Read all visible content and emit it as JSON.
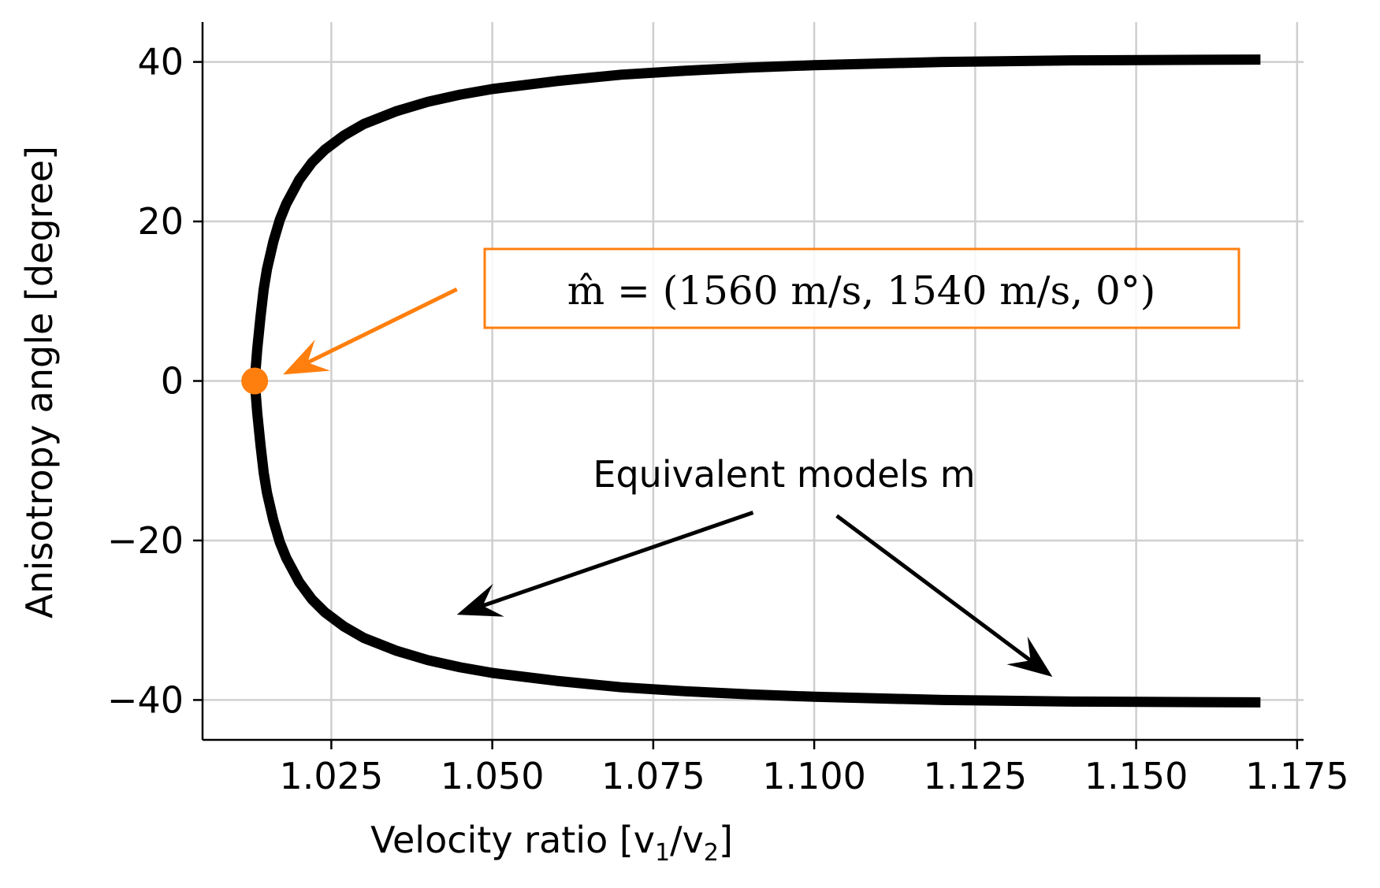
{
  "chart_data": {
    "type": "line",
    "title": "",
    "xlabel": "Velocity ratio [v1/v2]",
    "xlabel_parts": {
      "main": "Velocity ratio [v",
      "sub1": "1",
      "mid": "/v",
      "sub2": "2",
      "end": "]"
    },
    "ylabel": "Anisotropy angle [degree]",
    "xlim": [
      1.005,
      1.176
    ],
    "ylim": [
      -45,
      45
    ],
    "xticks": [
      1.025,
      1.05,
      1.075,
      1.1,
      1.125,
      1.15,
      1.175
    ],
    "xtick_labels": [
      "1.025",
      "1.050",
      "1.075",
      "1.100",
      "1.125",
      "1.150",
      "1.175"
    ],
    "yticks": [
      40,
      20,
      0,
      -20,
      -40
    ],
    "ytick_labels": [
      "40",
      "20",
      "0",
      "−20",
      "−40"
    ],
    "grid": true,
    "series": [
      {
        "name": "Equivalent models m",
        "color": "#000000",
        "points": [
          [
            1.1693,
            40.3
          ],
          [
            1.14,
            40.2
          ],
          [
            1.12,
            40.0
          ],
          [
            1.1,
            39.6
          ],
          [
            1.09,
            39.3
          ],
          [
            1.08,
            38.9
          ],
          [
            1.07,
            38.4
          ],
          [
            1.06,
            37.6
          ],
          [
            1.05,
            36.6
          ],
          [
            1.045,
            35.9
          ],
          [
            1.04,
            35.0
          ],
          [
            1.035,
            33.8
          ],
          [
            1.03,
            32.2
          ],
          [
            1.027,
            30.8
          ],
          [
            1.024,
            29.0
          ],
          [
            1.022,
            27.4
          ],
          [
            1.02,
            25.2
          ],
          [
            1.018,
            22.2
          ],
          [
            1.017,
            20.2
          ],
          [
            1.016,
            17.5
          ],
          [
            1.015,
            14.0
          ],
          [
            1.0145,
            11.5
          ],
          [
            1.014,
            8.0
          ],
          [
            1.0135,
            4.0
          ],
          [
            1.0131,
            0
          ],
          [
            1.0135,
            -4.0
          ],
          [
            1.014,
            -8.0
          ],
          [
            1.0145,
            -11.5
          ],
          [
            1.015,
            -14.0
          ],
          [
            1.016,
            -17.5
          ],
          [
            1.017,
            -20.2
          ],
          [
            1.018,
            -22.2
          ],
          [
            1.02,
            -25.2
          ],
          [
            1.022,
            -27.4
          ],
          [
            1.024,
            -29.0
          ],
          [
            1.027,
            -30.8
          ],
          [
            1.03,
            -32.2
          ],
          [
            1.035,
            -33.8
          ],
          [
            1.04,
            -35.0
          ],
          [
            1.045,
            -35.9
          ],
          [
            1.05,
            -36.6
          ],
          [
            1.06,
            -37.6
          ],
          [
            1.07,
            -38.4
          ],
          [
            1.08,
            -38.9
          ],
          [
            1.09,
            -39.3
          ],
          [
            1.1,
            -39.6
          ],
          [
            1.12,
            -40.0
          ],
          [
            1.14,
            -40.2
          ],
          [
            1.1693,
            -40.3
          ]
        ]
      }
    ],
    "highlight_point": {
      "x": 1.0131,
      "y": 0,
      "color": "#ff7f0e"
    },
    "annotations": [
      {
        "id": "m-hat",
        "text": "m̂ = (1560 m/s, 1540 m/s, 0°)",
        "box_edge_color": "#ff7f0e",
        "arrow_color": "#ff7f0e",
        "arrow_from": [
          1.0445,
          11.5
        ],
        "arrow_to": [
          1.0175,
          0.8
        ]
      },
      {
        "id": "equivalent",
        "text": "Equivalent models m",
        "arrow_color": "#000000",
        "arrows": [
          {
            "from": [
              1.0905,
              -16.5
            ],
            "to": [
              1.0445,
              -29.3
            ]
          },
          {
            "from": [
              1.1035,
              -16.9
            ],
            "to": [
              1.137,
              -37.1
            ]
          }
        ]
      }
    ]
  },
  "colors": {
    "curve": "#000000",
    "accent": "#ff7f0e",
    "grid": "#cfcfcf"
  }
}
